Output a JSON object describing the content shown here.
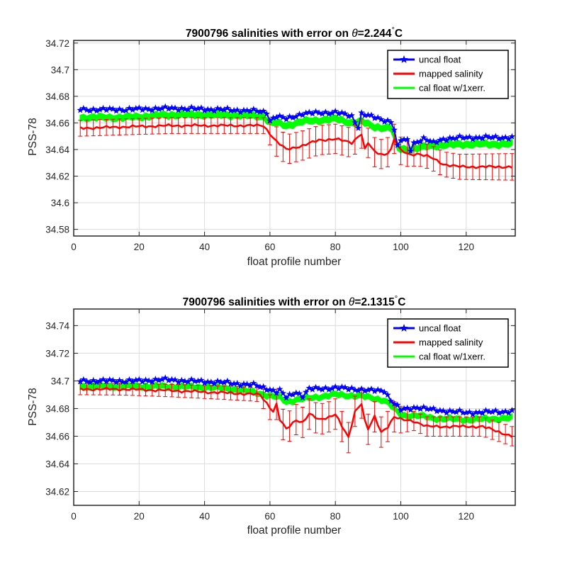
{
  "colors": {
    "uncal": "#0000ff",
    "mapped": "#ff0000",
    "cal": "#00ff00",
    "grid": "#dcdcdc",
    "axes": "#262626"
  },
  "chart_data": [
    {
      "type": "line",
      "title": "7900796 salinities with error on θ=2.244°C",
      "title_prefix": "7900796 salinities with error on ",
      "title_theta": "θ",
      "title_value": "=2.244",
      "title_degree": "°",
      "title_unit": "C",
      "xlabel": "float profile number",
      "ylabel": "PSS-78",
      "xlim": [
        0,
        135
      ],
      "ylim": [
        34.575,
        34.722
      ],
      "xticks": [
        0,
        20,
        40,
        60,
        80,
        100,
        120
      ],
      "yticks": [
        34.58,
        34.6,
        34.62,
        34.64,
        34.66,
        34.68,
        34.7,
        34.72
      ],
      "ytick_labels": [
        "34.58",
        "34.6",
        "34.62",
        "34.64",
        "34.66",
        "34.68",
        "34.7",
        "34.72"
      ],
      "grid": true,
      "legend_position": "top-right",
      "series": [
        {
          "name": "uncal float",
          "points": [
            [
              2,
              34.67
            ],
            [
              15,
              34.67
            ],
            [
              30,
              34.671
            ],
            [
              45,
              34.67
            ],
            [
              55,
              34.669
            ],
            [
              59,
              34.668
            ],
            [
              60,
              34.662
            ],
            [
              62,
              34.665
            ],
            [
              65,
              34.663
            ],
            [
              70,
              34.667
            ],
            [
              80,
              34.668
            ],
            [
              85,
              34.665
            ],
            [
              87,
              34.657
            ],
            [
              88,
              34.667
            ],
            [
              92,
              34.664
            ],
            [
              95,
              34.662
            ],
            [
              97,
              34.661
            ],
            [
              98,
              34.655
            ],
            [
              99,
              34.642
            ],
            [
              100,
              34.647
            ],
            [
              102,
              34.647
            ],
            [
              103,
              34.64
            ],
            [
              104,
              34.645
            ],
            [
              107,
              34.648
            ],
            [
              110,
              34.645
            ],
            [
              113,
              34.648
            ],
            [
              120,
              34.649
            ],
            [
              134,
              34.649
            ]
          ]
        },
        {
          "name": "mapped salinity",
          "points": [
            [
              2,
              34.656
            ],
            [
              15,
              34.657
            ],
            [
              30,
              34.658
            ],
            [
              45,
              34.658
            ],
            [
              58,
              34.658
            ],
            [
              60,
              34.652
            ],
            [
              62,
              34.646
            ],
            [
              65,
              34.64
            ],
            [
              70,
              34.643
            ],
            [
              75,
              34.647
            ],
            [
              80,
              34.648
            ],
            [
              85,
              34.645
            ],
            [
              87,
              34.65
            ],
            [
              88,
              34.652
            ],
            [
              89,
              34.64
            ],
            [
              90,
              34.645
            ],
            [
              92,
              34.638
            ],
            [
              95,
              34.636
            ],
            [
              97,
              34.64
            ],
            [
              98,
              34.648
            ],
            [
              100,
              34.639
            ],
            [
              103,
              34.636
            ],
            [
              105,
              34.637
            ],
            [
              108,
              34.635
            ],
            [
              110,
              34.633
            ],
            [
              113,
              34.629
            ],
            [
              118,
              34.627
            ],
            [
              134,
              34.627
            ]
          ],
          "error_bars": {
            "x_start": 2,
            "x_end": 134,
            "step": 2,
            "half_widths": [
              [
                2,
                0.006
              ],
              [
                58,
                0.006
              ],
              [
                62,
                0.011
              ],
              [
                98,
                0.011
              ],
              [
                104,
                0.009
              ],
              [
                134,
                0.01
              ]
            ]
          }
        },
        {
          "name": "cal float w/1xerr.",
          "points": [
            [
              2,
              34.664
            ],
            [
              15,
              34.664
            ],
            [
              30,
              34.666
            ],
            [
              45,
              34.666
            ],
            [
              58,
              34.665
            ],
            [
              60,
              34.66
            ],
            [
              62,
              34.66
            ],
            [
              65,
              34.658
            ],
            [
              70,
              34.661
            ],
            [
              80,
              34.663
            ],
            [
              85,
              34.66
            ],
            [
              88,
              34.661
            ],
            [
              92,
              34.657
            ],
            [
              97,
              34.656
            ],
            [
              99,
              34.641
            ],
            [
              102,
              34.64
            ],
            [
              105,
              34.641
            ],
            [
              110,
              34.643
            ],
            [
              120,
              34.644
            ],
            [
              134,
              34.644
            ]
          ],
          "band_half_width": 0.0022
        }
      ]
    },
    {
      "type": "line",
      "title": "7900796 salinities with error on θ=2.1315°C",
      "title_prefix": "7900796 salinities with error on ",
      "title_theta": "θ",
      "title_value": "=2.1315",
      "title_degree": "°",
      "title_unit": "C",
      "xlabel": "float profile number",
      "ylabel": "PSS-78",
      "xlim": [
        0,
        135
      ],
      "ylim": [
        34.61,
        34.752
      ],
      "xticks": [
        0,
        20,
        40,
        60,
        80,
        100,
        120
      ],
      "yticks": [
        34.62,
        34.64,
        34.66,
        34.68,
        34.7,
        34.72,
        34.74
      ],
      "ytick_labels": [
        "34.62",
        "34.64",
        "34.66",
        "34.68",
        "34.7",
        "34.72",
        "34.74"
      ],
      "grid": true,
      "legend_position": "top-right",
      "series": [
        {
          "name": "uncal float",
          "points": [
            [
              2,
              34.7
            ],
            [
              10,
              34.7
            ],
            [
              20,
              34.7
            ],
            [
              27,
              34.701
            ],
            [
              35,
              34.7
            ],
            [
              45,
              34.699
            ],
            [
              55,
              34.697
            ],
            [
              60,
              34.694
            ],
            [
              62,
              34.692
            ],
            [
              63,
              34.693
            ],
            [
              65,
              34.688
            ],
            [
              68,
              34.692
            ],
            [
              70,
              34.689
            ],
            [
              72,
              34.694
            ],
            [
              80,
              34.695
            ],
            [
              87,
              34.694
            ],
            [
              90,
              34.693
            ],
            [
              95,
              34.693
            ],
            [
              97,
              34.686
            ],
            [
              100,
              34.679
            ],
            [
              105,
              34.681
            ],
            [
              110,
              34.679
            ],
            [
              120,
              34.677
            ],
            [
              134,
              34.678
            ]
          ]
        },
        {
          "name": "mapped salinity",
          "points": [
            [
              2,
              34.694
            ],
            [
              15,
              34.694
            ],
            [
              30,
              34.693
            ],
            [
              40,
              34.692
            ],
            [
              50,
              34.691
            ],
            [
              57,
              34.69
            ],
            [
              59,
              34.684
            ],
            [
              61,
              34.678
            ],
            [
              62,
              34.683
            ],
            [
              63,
              34.672
            ],
            [
              65,
              34.665
            ],
            [
              68,
              34.672
            ],
            [
              70,
              34.67
            ],
            [
              72,
              34.676
            ],
            [
              75,
              34.672
            ],
            [
              78,
              34.674
            ],
            [
              80,
              34.676
            ],
            [
              82,
              34.667
            ],
            [
              84,
              34.659
            ],
            [
              86,
              34.678
            ],
            [
              88,
              34.684
            ],
            [
              89,
              34.671
            ],
            [
              90,
              34.665
            ],
            [
              92,
              34.674
            ],
            [
              94,
              34.663
            ],
            [
              96,
              34.667
            ],
            [
              98,
              34.674
            ],
            [
              100,
              34.672
            ],
            [
              104,
              34.671
            ],
            [
              108,
              34.667
            ],
            [
              115,
              34.667
            ],
            [
              125,
              34.667
            ],
            [
              134,
              34.66
            ]
          ],
          "error_bars": {
            "x_start": 2,
            "x_end": 134,
            "step": 2,
            "half_widths": [
              [
                2,
                0.004
              ],
              [
                56,
                0.005
              ],
              [
                62,
                0.011
              ],
              [
                98,
                0.011
              ],
              [
                104,
                0.007
              ],
              [
                134,
                0.007
              ]
            ]
          }
        },
        {
          "name": "cal float w/1xerr.",
          "points": [
            [
              2,
              34.696
            ],
            [
              15,
              34.696
            ],
            [
              30,
              34.696
            ],
            [
              45,
              34.695
            ],
            [
              55,
              34.692
            ],
            [
              60,
              34.689
            ],
            [
              63,
              34.688
            ],
            [
              65,
              34.685
            ],
            [
              70,
              34.687
            ],
            [
              80,
              34.69
            ],
            [
              88,
              34.689
            ],
            [
              95,
              34.686
            ],
            [
              97,
              34.682
            ],
            [
              100,
              34.675
            ],
            [
              105,
              34.675
            ],
            [
              110,
              34.673
            ],
            [
              120,
              34.672
            ],
            [
              134,
              34.673
            ]
          ],
          "band_half_width": 0.0018
        }
      ]
    }
  ]
}
